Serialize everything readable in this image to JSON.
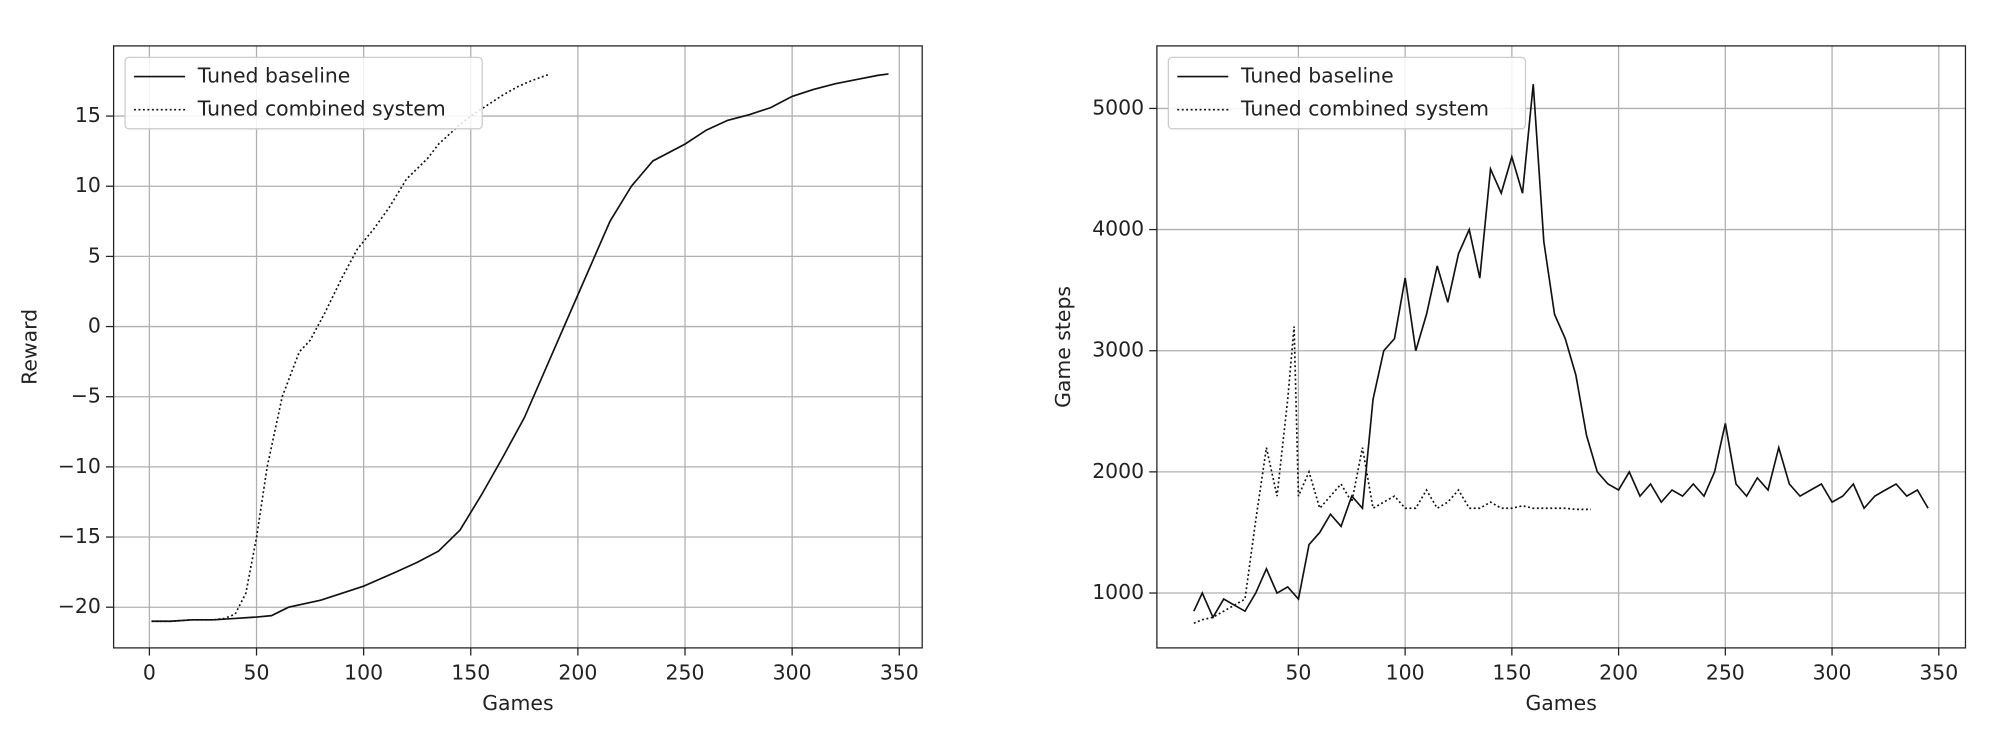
{
  "chart_data": [
    {
      "type": "line",
      "xlabel": "Games",
      "ylabel": "Reward",
      "xlim": [
        -16.7,
        360.7
      ],
      "ylim": [
        -22.9,
        20
      ],
      "xticks": [
        0,
        50,
        100,
        150,
        200,
        250,
        300,
        350
      ],
      "yticks": [
        {
          "value": -20,
          "label": "−20"
        },
        {
          "value": -15,
          "label": "−15"
        },
        {
          "value": -10,
          "label": "−10"
        },
        {
          "value": -5,
          "label": "−5"
        },
        0,
        5,
        10,
        15
      ],
      "grid": true,
      "legend": "upper left",
      "series": [
        {
          "name": "Tuned baseline",
          "color": "#111111",
          "linestyle": "solid",
          "x": [
            1,
            10,
            20,
            30,
            40,
            50,
            57,
            65,
            80,
            100,
            115,
            125,
            135,
            145,
            155,
            165,
            175,
            185,
            195,
            205,
            215,
            225,
            235,
            250,
            260,
            270,
            280,
            290,
            300,
            310,
            320,
            330,
            340,
            345
          ],
          "values": [
            -21,
            -21,
            -20.9,
            -20.9,
            -20.8,
            -20.7,
            -20.6,
            -20,
            -19.5,
            -18.5,
            -17.5,
            -16.8,
            -16,
            -14.5,
            -12,
            -9.3,
            -6.5,
            -3,
            0.5,
            4,
            7.5,
            10,
            11.8,
            13,
            14,
            14.7,
            15.1,
            15.6,
            16.4,
            16.9,
            17.3,
            17.6,
            17.9,
            18
          ]
        },
        {
          "name": "Tuned combined system",
          "color": "#111111",
          "linestyle": "dotted",
          "x": [
            1,
            10,
            20,
            30,
            35,
            40,
            45,
            50,
            55,
            62,
            70,
            75,
            82,
            90,
            97,
            105,
            112,
            120,
            130,
            135,
            145,
            150,
            160,
            165,
            172,
            178,
            187
          ],
          "values": [
            -21,
            -21,
            -20.9,
            -20.9,
            -20.8,
            -20.5,
            -19,
            -15,
            -10,
            -5,
            -1.8,
            -1,
            1,
            3.5,
            5.5,
            7,
            8.5,
            10.5,
            12,
            13,
            14.4,
            15,
            16,
            16.5,
            17.1,
            17.5,
            18
          ]
        }
      ]
    },
    {
      "type": "line",
      "xlabel": "Games",
      "ylabel": "Game steps",
      "xlim": [
        -16.3,
        362.5
      ],
      "ylim": [
        547,
        5516
      ],
      "xticks": [
        50,
        100,
        150,
        200,
        250,
        300,
        350
      ],
      "yticks": [
        1000,
        2000,
        3000,
        4000,
        5000
      ],
      "grid": true,
      "legend": "upper left",
      "series": [
        {
          "name": "Tuned baseline",
          "color": "#111111",
          "linestyle": "solid",
          "x": [
            1,
            5,
            10,
            15,
            20,
            25,
            30,
            35,
            40,
            45,
            50,
            55,
            60,
            65,
            70,
            75,
            80,
            85,
            90,
            95,
            100,
            105,
            110,
            115,
            120,
            125,
            130,
            135,
            140,
            145,
            150,
            155,
            160,
            165,
            170,
            175,
            180,
            185,
            190,
            195,
            200,
            205,
            210,
            215,
            220,
            225,
            230,
            235,
            240,
            245,
            250,
            255,
            260,
            265,
            270,
            275,
            280,
            285,
            290,
            295,
            300,
            305,
            310,
            315,
            320,
            325,
            330,
            335,
            340,
            345
          ],
          "values": [
            850,
            1000,
            800,
            950,
            900,
            850,
            1000,
            1200,
            1000,
            1050,
            950,
            1400,
            1500,
            1650,
            1550,
            1800,
            1700,
            2600,
            3000,
            3100,
            3600,
            3000,
            3300,
            3700,
            3400,
            3800,
            4000,
            3600,
            4500,
            4300,
            4600,
            4300,
            5200,
            3900,
            3300,
            3100,
            2800,
            2300,
            2000,
            1900,
            1850,
            2000,
            1800,
            1900,
            1750,
            1850,
            1800,
            1900,
            1800,
            2000,
            2400,
            1900,
            1800,
            1950,
            1850,
            2200,
            1900,
            1800,
            1850,
            1900,
            1750,
            1800,
            1900,
            1700,
            1800,
            1850,
            1900,
            1800,
            1850,
            1700
          ]
        },
        {
          "name": "Tuned combined system",
          "color": "#111111",
          "linestyle": "dotted",
          "x": [
            1,
            5,
            10,
            15,
            20,
            25,
            30,
            35,
            40,
            45,
            48,
            50,
            55,
            60,
            65,
            70,
            75,
            80,
            85,
            90,
            95,
            100,
            105,
            110,
            115,
            120,
            125,
            130,
            135,
            140,
            145,
            150,
            155,
            160,
            165,
            170,
            175,
            180,
            187
          ],
          "values": [
            750,
            780,
            800,
            850,
            900,
            950,
            1600,
            2200,
            1800,
            2600,
            3200,
            1800,
            2000,
            1700,
            1800,
            1900,
            1750,
            2200,
            1700,
            1750,
            1800,
            1700,
            1700,
            1850,
            1700,
            1750,
            1850,
            1700,
            1700,
            1750,
            1700,
            1700,
            1720,
            1700,
            1700,
            1700,
            1700,
            1690,
            1690
          ]
        }
      ]
    }
  ]
}
